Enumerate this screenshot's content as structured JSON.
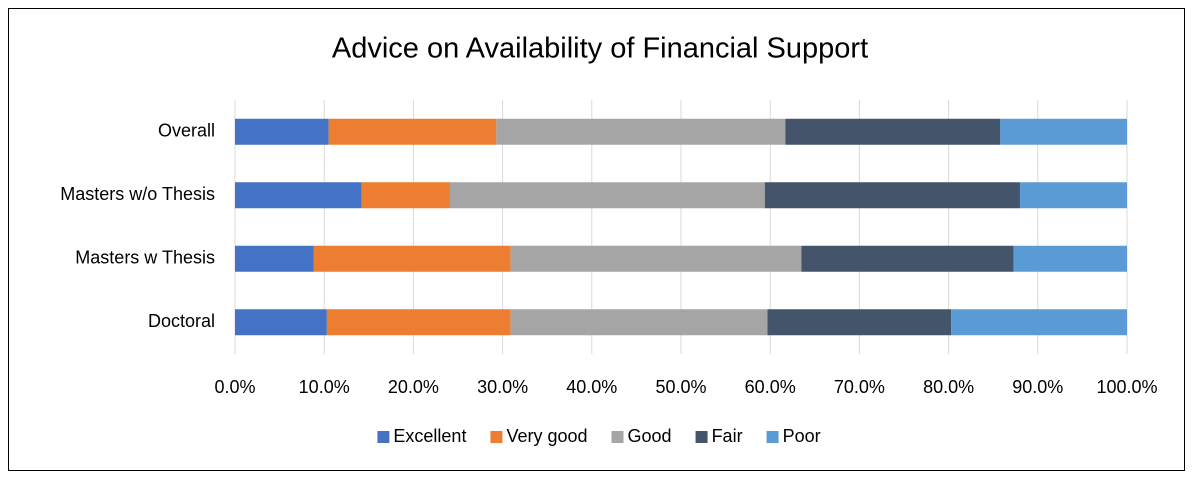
{
  "chart_data": {
    "type": "stacked_bar_horizontal",
    "title": "Advice on Availability of Financial Support",
    "categories": [
      "Overall",
      "Masters w/o Thesis",
      "Masters w Thesis",
      "Doctoral"
    ],
    "series": [
      {
        "name": "Excellent",
        "color": "#4472c4",
        "values": [
          10.5,
          14.2,
          8.8,
          10.3
        ]
      },
      {
        "name": "Very good",
        "color": "#ed7d31",
        "values": [
          18.8,
          9.9,
          22.1,
          20.6
        ]
      },
      {
        "name": "Good",
        "color": "#a5a5a5",
        "values": [
          32.4,
          35.3,
          32.6,
          28.8
        ]
      },
      {
        "name": "Fair",
        "color": "#44546a",
        "values": [
          24.1,
          28.6,
          23.8,
          20.6
        ]
      },
      {
        "name": "Poor",
        "color": "#5b9bd5",
        "values": [
          14.2,
          12.0,
          12.7,
          19.7
        ]
      }
    ],
    "xlim": [
      0,
      100
    ],
    "xticks": [
      {
        "value": 0,
        "label": "0.0%"
      },
      {
        "value": 10,
        "label": "10.0%"
      },
      {
        "value": 20,
        "label": "20.0%"
      },
      {
        "value": 30,
        "label": "30.0%"
      },
      {
        "value": 40,
        "label": "40.0%"
      },
      {
        "value": 50,
        "label": "50.0%"
      },
      {
        "value": 60,
        "label": "60.0%"
      },
      {
        "value": 70,
        "label": "70.0%"
      },
      {
        "value": 80,
        "label": "80.0%"
      },
      {
        "value": 90,
        "label": "90.0%"
      },
      {
        "value": 100,
        "label": "100.0%"
      }
    ],
    "grid": true,
    "legend": "bottom"
  }
}
